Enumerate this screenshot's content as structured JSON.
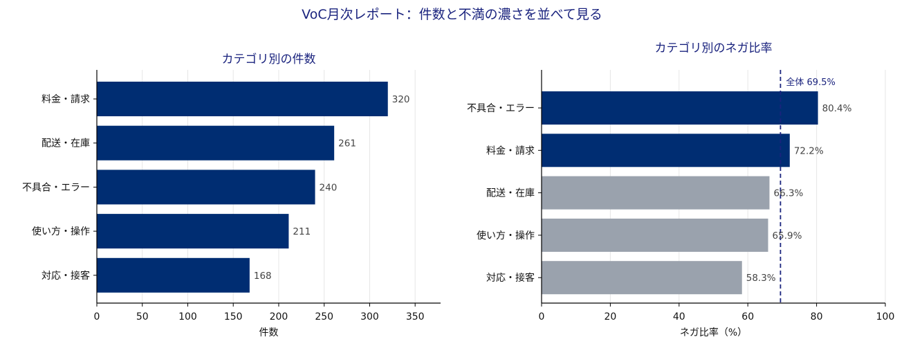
{
  "figure": {
    "title": "VoC月次レポート：件数と不満の濃さを並べて見る"
  },
  "colors": {
    "highlight": "#002d72",
    "muted": "#9aa2ad",
    "title": "#1a237e",
    "reference": "#1a237e"
  },
  "chart_data": [
    {
      "type": "bar",
      "orientation": "horizontal",
      "title": "カテゴリ別の件数",
      "xlabel": "件数",
      "categories": [
        "料金・請求",
        "配送・在庫",
        "不具合・エラー",
        "使い方・操作",
        "対応・接客"
      ],
      "values": [
        320,
        261,
        240,
        211,
        168
      ],
      "value_labels": [
        "320",
        "261",
        "240",
        "211",
        "168"
      ],
      "xlim": [
        0,
        378
      ],
      "xticks": [
        0,
        50,
        100,
        150,
        200,
        250,
        300,
        350
      ],
      "xtick_labels": [
        "0",
        "50",
        "100",
        "150",
        "200",
        "250",
        "300",
        "350"
      ],
      "bar_colors": [
        "#002d72",
        "#002d72",
        "#002d72",
        "#002d72",
        "#002d72"
      ],
      "grid": "x"
    },
    {
      "type": "bar",
      "orientation": "horizontal",
      "title": "カテゴリ別のネガ比率",
      "xlabel": "ネガ比率（%）",
      "categories": [
        "不具合・エラー",
        "料金・請求",
        "配送・在庫",
        "使い方・操作",
        "対応・接客"
      ],
      "values": [
        80.4,
        72.2,
        66.3,
        65.9,
        58.3
      ],
      "value_labels": [
        "80.4%",
        "72.2%",
        "66.3%",
        "65.9%",
        "58.3%"
      ],
      "xlim": [
        0,
        100
      ],
      "xticks": [
        0,
        20,
        40,
        60,
        80,
        100
      ],
      "xtick_labels": [
        "0",
        "20",
        "40",
        "60",
        "80",
        "100"
      ],
      "bar_colors": [
        "#002d72",
        "#002d72",
        "#9aa2ad",
        "#9aa2ad",
        "#9aa2ad"
      ],
      "grid": "x",
      "reference_line": {
        "value": 69.5,
        "label": "全体 69.5%"
      }
    }
  ]
}
